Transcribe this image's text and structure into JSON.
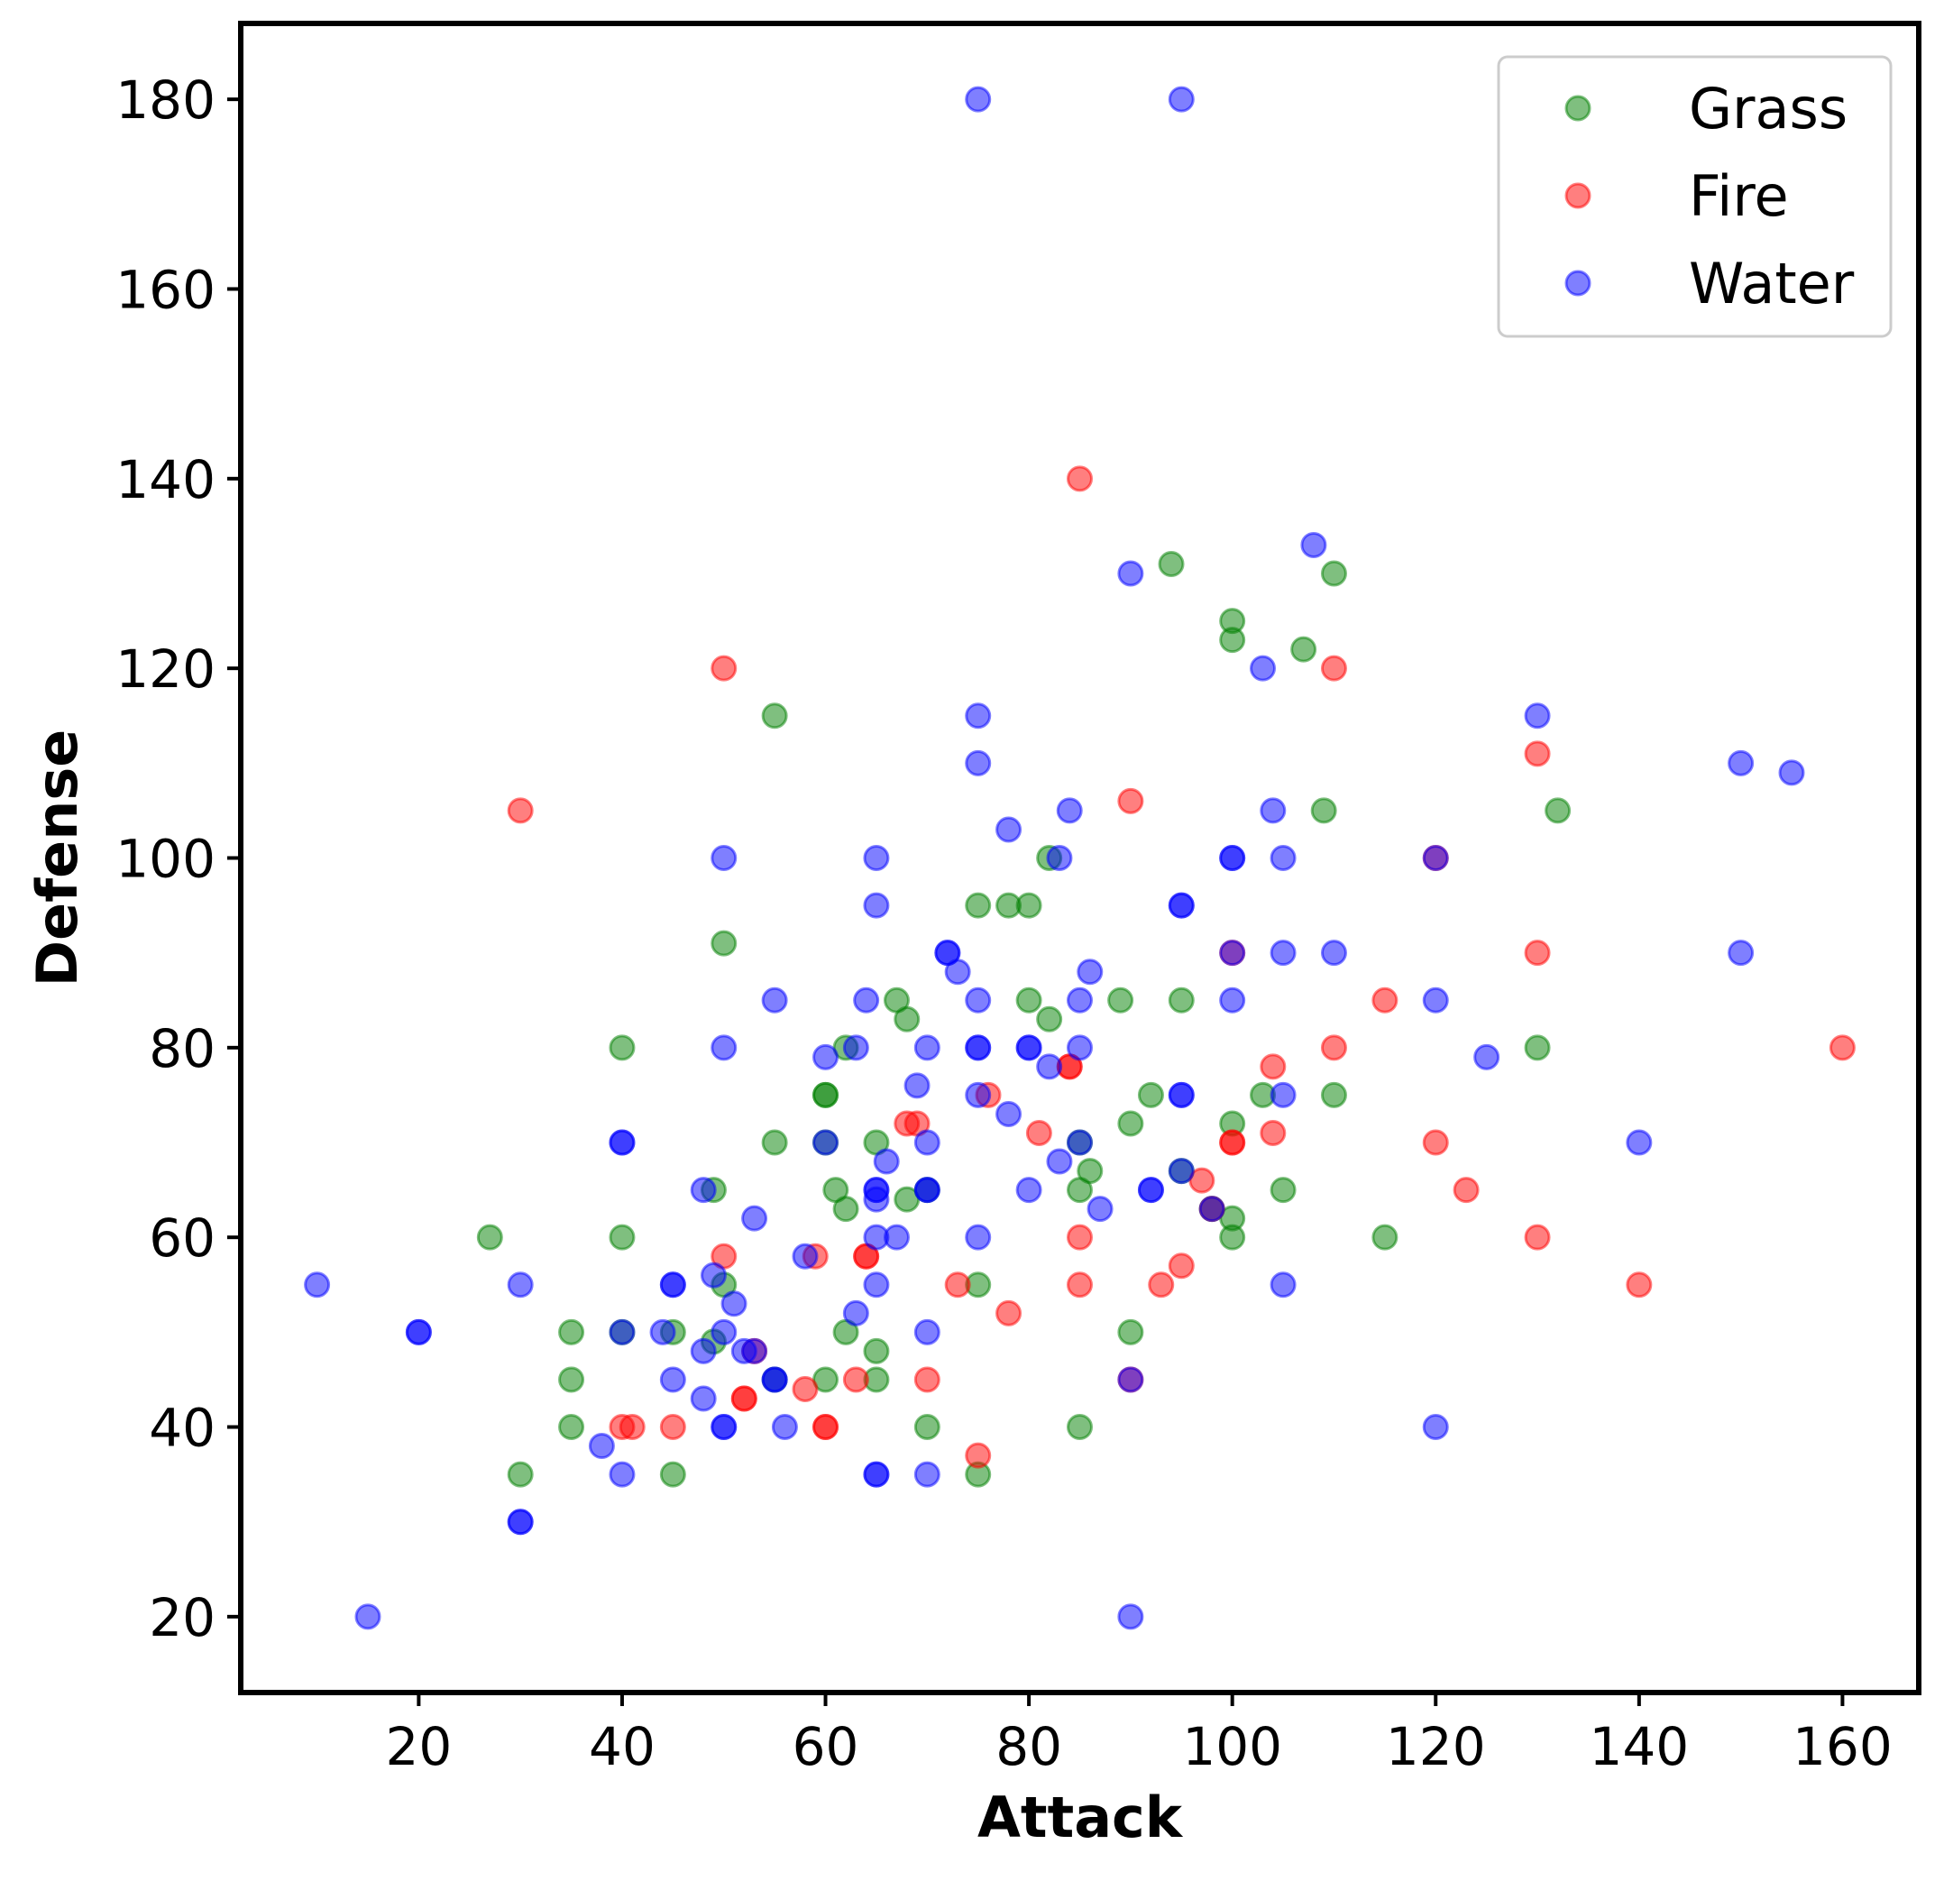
{
  "chart_data": {
    "type": "scatter",
    "title": "",
    "xlabel": "Attack",
    "ylabel": "Defense",
    "xlim": [
      2.5,
      167.5
    ],
    "ylim": [
      12.0,
      188.0
    ],
    "xticks": [
      20,
      40,
      60,
      80,
      100,
      120,
      140,
      160
    ],
    "yticks": [
      20,
      40,
      60,
      80,
      100,
      120,
      140,
      160,
      180
    ],
    "grid": false,
    "legend": {
      "position": "top-right"
    },
    "marker_alpha": 0.5,
    "series": [
      {
        "name": "Grass",
        "color": "#008000",
        "points": [
          [
            27,
            60
          ],
          [
            30,
            35
          ],
          [
            35,
            50
          ],
          [
            35,
            45
          ],
          [
            35,
            40
          ],
          [
            40,
            80
          ],
          [
            40,
            60
          ],
          [
            40,
            50
          ],
          [
            45,
            50
          ],
          [
            45,
            35
          ],
          [
            49,
            65
          ],
          [
            49,
            49
          ],
          [
            50,
            91
          ],
          [
            50,
            55
          ],
          [
            55,
            115
          ],
          [
            55,
            70
          ],
          [
            55,
            45
          ],
          [
            60,
            75
          ],
          [
            60,
            75
          ],
          [
            60,
            70
          ],
          [
            60,
            45
          ],
          [
            61,
            65
          ],
          [
            62,
            80
          ],
          [
            62,
            63
          ],
          [
            62,
            50
          ],
          [
            65,
            70
          ],
          [
            65,
            48
          ],
          [
            65,
            45
          ],
          [
            67,
            85
          ],
          [
            68,
            83
          ],
          [
            68,
            64
          ],
          [
            70,
            65
          ],
          [
            70,
            40
          ],
          [
            75,
            95
          ],
          [
            75,
            55
          ],
          [
            75,
            35
          ],
          [
            78,
            95
          ],
          [
            80,
            95
          ],
          [
            80,
            85
          ],
          [
            82,
            100
          ],
          [
            82,
            83
          ],
          [
            85,
            70
          ],
          [
            85,
            65
          ],
          [
            85,
            40
          ],
          [
            86,
            67
          ],
          [
            89,
            85
          ],
          [
            90,
            72
          ],
          [
            90,
            50
          ],
          [
            92,
            75
          ],
          [
            94,
            131
          ],
          [
            95,
            85
          ],
          [
            95,
            67
          ],
          [
            100,
            125
          ],
          [
            100,
            123
          ],
          [
            100,
            72
          ],
          [
            100,
            62
          ],
          [
            100,
            60
          ],
          [
            103,
            75
          ],
          [
            105,
            65
          ],
          [
            107,
            122
          ],
          [
            109,
            105
          ],
          [
            110,
            130
          ],
          [
            110,
            75
          ],
          [
            115,
            60
          ],
          [
            130,
            80
          ],
          [
            132,
            105
          ],
          [
            98,
            63
          ]
        ]
      },
      {
        "name": "Fire",
        "color": "#ff0000",
        "points": [
          [
            30,
            105
          ],
          [
            40,
            40
          ],
          [
            41,
            40
          ],
          [
            45,
            40
          ],
          [
            50,
            120
          ],
          [
            50,
            58
          ],
          [
            52,
            43
          ],
          [
            52,
            43
          ],
          [
            53,
            48
          ],
          [
            58,
            44
          ],
          [
            59,
            58
          ],
          [
            60,
            40
          ],
          [
            60,
            40
          ],
          [
            63,
            45
          ],
          [
            64,
            58
          ],
          [
            64,
            58
          ],
          [
            68,
            72
          ],
          [
            69,
            72
          ],
          [
            70,
            45
          ],
          [
            73,
            55
          ],
          [
            75,
            37
          ],
          [
            76,
            75
          ],
          [
            78,
            52
          ],
          [
            81,
            71
          ],
          [
            84,
            78
          ],
          [
            84,
            78
          ],
          [
            85,
            140
          ],
          [
            85,
            60
          ],
          [
            85,
            55
          ],
          [
            90,
            106
          ],
          [
            90,
            45
          ],
          [
            93,
            55
          ],
          [
            95,
            57
          ],
          [
            97,
            66
          ],
          [
            98,
            63
          ],
          [
            100,
            90
          ],
          [
            100,
            70
          ],
          [
            100,
            70
          ],
          [
            104,
            78
          ],
          [
            104,
            71
          ],
          [
            110,
            120
          ],
          [
            110,
            80
          ],
          [
            115,
            85
          ],
          [
            120,
            100
          ],
          [
            120,
            70
          ],
          [
            123,
            65
          ],
          [
            130,
            111
          ],
          [
            130,
            90
          ],
          [
            130,
            60
          ],
          [
            140,
            55
          ],
          [
            160,
            80
          ]
        ]
      },
      {
        "name": "Water",
        "color": "#0000ff",
        "points": [
          [
            10,
            55
          ],
          [
            15,
            20
          ],
          [
            20,
            50
          ],
          [
            20,
            50
          ],
          [
            30,
            55
          ],
          [
            30,
            30
          ],
          [
            30,
            30
          ],
          [
            38,
            38
          ],
          [
            40,
            70
          ],
          [
            40,
            70
          ],
          [
            40,
            50
          ],
          [
            40,
            35
          ],
          [
            44,
            50
          ],
          [
            45,
            55
          ],
          [
            45,
            55
          ],
          [
            45,
            45
          ],
          [
            48,
            65
          ],
          [
            48,
            48
          ],
          [
            48,
            43
          ],
          [
            49,
            56
          ],
          [
            50,
            100
          ],
          [
            50,
            80
          ],
          [
            50,
            50
          ],
          [
            50,
            40
          ],
          [
            50,
            40
          ],
          [
            51,
            53
          ],
          [
            52,
            48
          ],
          [
            53,
            62
          ],
          [
            53,
            48
          ],
          [
            55,
            85
          ],
          [
            55,
            45
          ],
          [
            55,
            45
          ],
          [
            56,
            40
          ],
          [
            58,
            58
          ],
          [
            60,
            79
          ],
          [
            60,
            70
          ],
          [
            63,
            80
          ],
          [
            63,
            52
          ],
          [
            64,
            85
          ],
          [
            65,
            100
          ],
          [
            65,
            95
          ],
          [
            65,
            65
          ],
          [
            65,
            65
          ],
          [
            65,
            64
          ],
          [
            65,
            60
          ],
          [
            65,
            55
          ],
          [
            65,
            35
          ],
          [
            65,
            35
          ],
          [
            66,
            68
          ],
          [
            67,
            60
          ],
          [
            69,
            76
          ],
          [
            70,
            80
          ],
          [
            70,
            70
          ],
          [
            70,
            65
          ],
          [
            70,
            65
          ],
          [
            70,
            50
          ],
          [
            70,
            35
          ],
          [
            72,
            90
          ],
          [
            72,
            90
          ],
          [
            73,
            88
          ],
          [
            75,
            180
          ],
          [
            75,
            115
          ],
          [
            75,
            110
          ],
          [
            75,
            85
          ],
          [
            75,
            80
          ],
          [
            75,
            80
          ],
          [
            75,
            75
          ],
          [
            75,
            60
          ],
          [
            78,
            103
          ],
          [
            78,
            73
          ],
          [
            80,
            80
          ],
          [
            80,
            80
          ],
          [
            80,
            65
          ],
          [
            82,
            78
          ],
          [
            83,
            100
          ],
          [
            83,
            68
          ],
          [
            84,
            105
          ],
          [
            85,
            85
          ],
          [
            85,
            80
          ],
          [
            85,
            70
          ],
          [
            86,
            88
          ],
          [
            87,
            63
          ],
          [
            90,
            130
          ],
          [
            90,
            45
          ],
          [
            90,
            20
          ],
          [
            92,
            65
          ],
          [
            92,
            65
          ],
          [
            95,
            180
          ],
          [
            95,
            95
          ],
          [
            95,
            95
          ],
          [
            95,
            75
          ],
          [
            95,
            75
          ],
          [
            95,
            67
          ],
          [
            98,
            63
          ],
          [
            100,
            100
          ],
          [
            100,
            100
          ],
          [
            100,
            90
          ],
          [
            100,
            85
          ],
          [
            103,
            120
          ],
          [
            104,
            105
          ],
          [
            105,
            100
          ],
          [
            105,
            90
          ],
          [
            105,
            75
          ],
          [
            105,
            55
          ],
          [
            108,
            133
          ],
          [
            110,
            90
          ],
          [
            120,
            100
          ],
          [
            120,
            85
          ],
          [
            120,
            40
          ],
          [
            125,
            79
          ],
          [
            130,
            115
          ],
          [
            140,
            70
          ],
          [
            150,
            110
          ],
          [
            150,
            90
          ],
          [
            155,
            109
          ]
        ]
      }
    ]
  }
}
